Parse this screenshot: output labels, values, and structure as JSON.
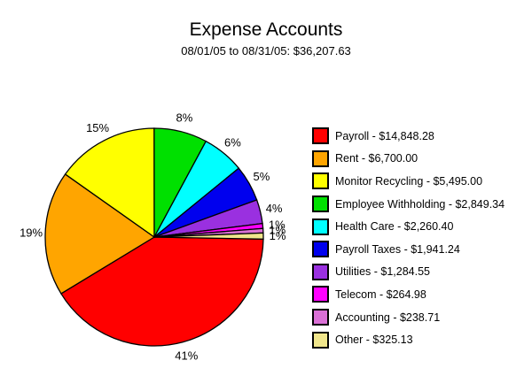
{
  "chart_data": {
    "type": "pie",
    "title": "Expense Accounts",
    "subtitle": "08/01/05 to 08/31/05: $36,207.63",
    "total": 36207.63,
    "rotation_deg": 91.06,
    "legend_position": "right",
    "percent_labels_outside": true,
    "slices": [
      {
        "name": "Payroll",
        "value": 14848.28,
        "legend_label": "Payroll - $14,848.28",
        "pct_label": "41%",
        "color": "#FF0000"
      },
      {
        "name": "Rent",
        "value": 6700.0,
        "legend_label": "Rent - $6,700.00",
        "pct_label": "19%",
        "color": "#FFA500"
      },
      {
        "name": "Monitor Recycling",
        "value": 5495.0,
        "legend_label": "Monitor Recycling - $5,495.00",
        "pct_label": "15%",
        "color": "#FFFF00"
      },
      {
        "name": "Employee Withholding",
        "value": 2849.34,
        "legend_label": "Employee Withholding - $2,849.34",
        "pct_label": "8%",
        "color": "#00E000"
      },
      {
        "name": "Health Care",
        "value": 2260.4,
        "legend_label": "Health Care - $2,260.40",
        "pct_label": "6%",
        "color": "#00FFFF"
      },
      {
        "name": "Payroll Taxes",
        "value": 1941.24,
        "legend_label": "Payroll Taxes - $1,941.24",
        "pct_label": "5%",
        "color": "#0000EE"
      },
      {
        "name": "Utilities",
        "value": 1284.55,
        "legend_label": "Utilities - $1,284.55",
        "pct_label": "4%",
        "color": "#9A30E0"
      },
      {
        "name": "Telecom",
        "value": 264.98,
        "legend_label": "Telecom - $264.98",
        "pct_label": "1%",
        "color": "#FF00FF"
      },
      {
        "name": "Accounting",
        "value": 238.71,
        "legend_label": "Accounting - $238.71",
        "pct_label": "1%",
        "color": "#DA70D6"
      },
      {
        "name": "Other",
        "value": 325.13,
        "legend_label": "Other - $325.13",
        "pct_label": "1%",
        "color": "#F0E68C"
      }
    ]
  }
}
